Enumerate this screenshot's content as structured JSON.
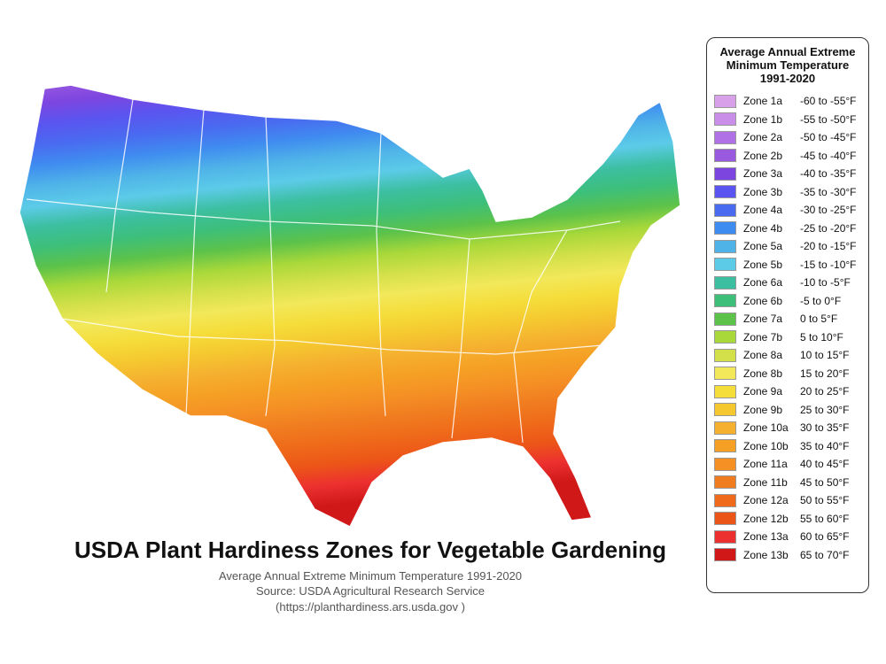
{
  "map": {
    "title": "USDA Plant Hardiness Zones for Vegetable Gardening",
    "subtitle": "Average Annual Extreme Minimum Temperature 1991-2020",
    "source": "Source: USDA Agricultural Research Service",
    "url": "(https://planthardiness.ars.usda.gov )"
  },
  "legend": {
    "title": [
      "Average Annual Extreme",
      "Minimum Temperature",
      "1991-2020"
    ],
    "items": [
      {
        "zone": "Zone 1a",
        "range": "-60 to -55°F",
        "color": "#d9a0ea"
      },
      {
        "zone": "Zone 1b",
        "range": "-55 to -50°F",
        "color": "#c98fe8"
      },
      {
        "zone": "Zone 2a",
        "range": "-50 to -45°F",
        "color": "#b070e6"
      },
      {
        "zone": "Zone 2b",
        "range": "-45 to -40°F",
        "color": "#9a5ae0"
      },
      {
        "zone": "Zone 3a",
        "range": "-40 to -35°F",
        "color": "#7d45e0"
      },
      {
        "zone": "Zone 3b",
        "range": "-35 to -30°F",
        "color": "#5a55f0"
      },
      {
        "zone": "Zone 4a",
        "range": "-30 to -25°F",
        "color": "#4a6af0"
      },
      {
        "zone": "Zone 4b",
        "range": "-25 to -20°F",
        "color": "#3f8cf0"
      },
      {
        "zone": "Zone 5a",
        "range": "-20 to -15°F",
        "color": "#4fb3e8"
      },
      {
        "zone": "Zone 5b",
        "range": "-15 to -10°F",
        "color": "#5ccbe8"
      },
      {
        "zone": "Zone 6a",
        "range": "-10 to -5°F",
        "color": "#3cbfa0"
      },
      {
        "zone": "Zone 6b",
        "range": "-5 to 0°F",
        "color": "#3dbf7a"
      },
      {
        "zone": "Zone 7a",
        "range": "0 to 5°F",
        "color": "#5cc24a"
      },
      {
        "zone": "Zone 7b",
        "range": "5 to 10°F",
        "color": "#a8d83a"
      },
      {
        "zone": "Zone 8a",
        "range": "10 to 15°F",
        "color": "#d3e04a"
      },
      {
        "zone": "Zone 8b",
        "range": "15 to 20°F",
        "color": "#f2e85a"
      },
      {
        "zone": "Zone 9a",
        "range": "20 to 25°F",
        "color": "#f5dd3a"
      },
      {
        "zone": "Zone 9b",
        "range": "25 to 30°F",
        "color": "#f5c830"
      },
      {
        "zone": "Zone 10a",
        "range": "30 to 35°F",
        "color": "#f5b030"
      },
      {
        "zone": "Zone 10b",
        "range": "35 to 40°F",
        "color": "#f5a025"
      },
      {
        "zone": "Zone 11a",
        "range": "40 to 45°F",
        "color": "#f59025"
      },
      {
        "zone": "Zone 11b",
        "range": "45 to 50°F",
        "color": "#f07c20"
      },
      {
        "zone": "Zone 12a",
        "range": "50 to 55°F",
        "color": "#ef6a1a"
      },
      {
        "zone": "Zone 12b",
        "range": "55 to 60°F",
        "color": "#ec5518"
      },
      {
        "zone": "Zone 13a",
        "range": "60 to 65°F",
        "color": "#ec3030"
      },
      {
        "zone": "Zone 13b",
        "range": "65 to 70°F",
        "color": "#d01818"
      }
    ]
  }
}
